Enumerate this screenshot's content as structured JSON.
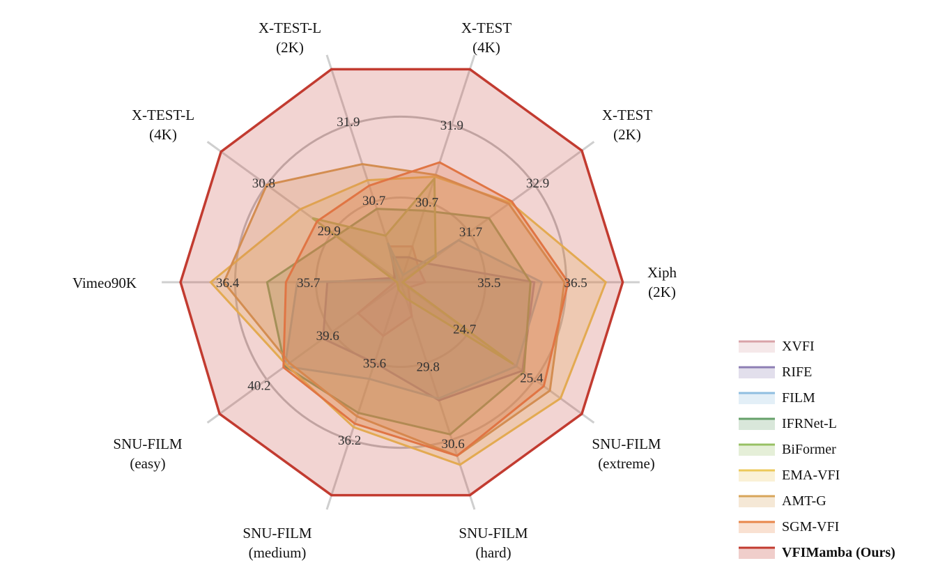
{
  "chart_data": {
    "type": "radar",
    "axes": [
      {
        "lines": [
          "Xiph",
          "(2K)"
        ],
        "scale": "35.5"
      },
      {
        "lines": [
          "X-TEST",
          "(2K)"
        ],
        "scale": "32.9"
      },
      {
        "lines": [
          "X-TEST",
          "(4K)"
        ],
        "scale": "31.9"
      },
      {
        "lines": [
          "X-TEST-L",
          "(2K)"
        ],
        "scale": "31.9"
      },
      {
        "lines": [
          "X-TEST-L",
          "(4K)"
        ],
        "scale": "30.8"
      },
      {
        "lines": [
          "Vimeo90K"
        ],
        "scale": "36.4"
      },
      {
        "lines": [
          "SNU-FILM",
          "(easy)"
        ],
        "scale": "40.2"
      },
      {
        "lines": [
          "SNU-FILM",
          "(medium)"
        ],
        "scale": "36.2"
      },
      {
        "lines": [
          "SNU-FILM",
          "(hard)"
        ],
        "scale": "30.6"
      },
      {
        "lines": [
          "SNU-FILM",
          "(extreme)"
        ],
        "scale": "25.4"
      }
    ],
    "tick_labels": [
      {
        "axis": 0,
        "r": 0.47,
        "text": "35.5"
      },
      {
        "axis": 0,
        "r": 0.93,
        "text": "36.5"
      },
      {
        "axis": 1,
        "r": 0.46,
        "text": "31.7"
      },
      {
        "axis": 1,
        "r": 0.9,
        "text": "32.9"
      },
      {
        "axis": 2,
        "r": 0.45,
        "text": "30.7"
      },
      {
        "axis": 2,
        "r": 0.88,
        "text": "31.9"
      },
      {
        "axis": 3,
        "r": 0.46,
        "text": "30.7"
      },
      {
        "axis": 3,
        "r": 0.9,
        "text": "31.9"
      },
      {
        "axis": 4,
        "r": 0.47,
        "text": "29.9"
      },
      {
        "axis": 4,
        "r": 0.9,
        "text": "30.8"
      },
      {
        "axis": 5,
        "r": 0.49,
        "text": "35.7"
      },
      {
        "axis": 5,
        "r": 0.92,
        "text": "36.4"
      },
      {
        "axis": 6,
        "r": 0.48,
        "text": "39.6"
      },
      {
        "axis": 6,
        "r": 0.93,
        "text": "40.2"
      },
      {
        "axis": 7,
        "r": 0.45,
        "text": "35.6"
      },
      {
        "axis": 7,
        "r": 0.88,
        "text": "36.2"
      },
      {
        "axis": 8,
        "r": 0.47,
        "text": "29.8"
      },
      {
        "axis": 8,
        "r": 0.9,
        "text": "30.6"
      },
      {
        "axis": 9,
        "r": 0.42,
        "text": "24.7"
      },
      {
        "axis": 9,
        "r": 0.86,
        "text": "25.4"
      }
    ],
    "grid": {
      "rings": [
        0.45,
        0.88
      ],
      "ring_color": "#c0c0c0",
      "spoke_color": "#cfcfcf"
    },
    "legend_position": "bottom-right",
    "series": [
      {
        "name": "XVFI",
        "color": "#d9a3a8",
        "bold": false,
        "values": [
          0.13,
          0.12,
          0.2,
          0.2,
          0.03,
          0.03,
          0.28,
          0.3,
          0.19,
          0.05
        ]
      },
      {
        "name": "RIFE",
        "color": "#8d7fb4",
        "bold": false,
        "values": [
          0.71,
          0.17,
          0.14,
          0.14,
          0.04,
          0.39,
          0.51,
          0.45,
          0.66,
          0.8
        ]
      },
      {
        "name": "FILM",
        "color": "#8fbee0",
        "bold": false,
        "values": [
          0.75,
          0.38,
          0.04,
          0.22,
          0.02,
          0.55,
          0.76,
          0.54,
          0.65,
          0.76
        ]
      },
      {
        "name": "IFRNet-L",
        "color": "#66a06a",
        "bold": false,
        "values": [
          0.69,
          0.58,
          0.4,
          0.41,
          0.42,
          0.71,
          0.76,
          0.73,
          0.85,
          0.81
        ]
      },
      {
        "name": "BiFormer",
        "color": "#98c064",
        "bold": false,
        "values": [
          0.01,
          0.23,
          0.58,
          0.26,
          0.58,
          0.02,
          0.02,
          0.04,
          0.09,
          0.74
        ]
      },
      {
        "name": "EMA-VFI",
        "color": "#ecc95a",
        "bold": false,
        "values": [
          1.09,
          0.72,
          0.59,
          0.57,
          0.66,
          1.01,
          0.75,
          0.81,
          1.02,
          1.05
        ]
      },
      {
        "name": "AMT-G",
        "color": "#d8a55a",
        "bold": false,
        "values": [
          0.87,
          0.71,
          0.6,
          0.66,
          0.88,
          0.94,
          0.73,
          0.75,
          0.97,
          0.98
        ]
      },
      {
        "name": "SGM-VFI",
        "color": "#e8864a",
        "bold": false,
        "values": [
          0.89,
          0.73,
          0.67,
          0.54,
          0.55,
          0.61,
          0.77,
          0.79,
          0.97,
          0.94
        ]
      },
      {
        "name": "VFIMamba (Ours)",
        "color": "#c23b30",
        "bold": true,
        "values": [
          1.18,
          1.19,
          1.19,
          1.19,
          1.18,
          1.17,
          1.19,
          1.19,
          1.19,
          1.19
        ]
      }
    ]
  }
}
